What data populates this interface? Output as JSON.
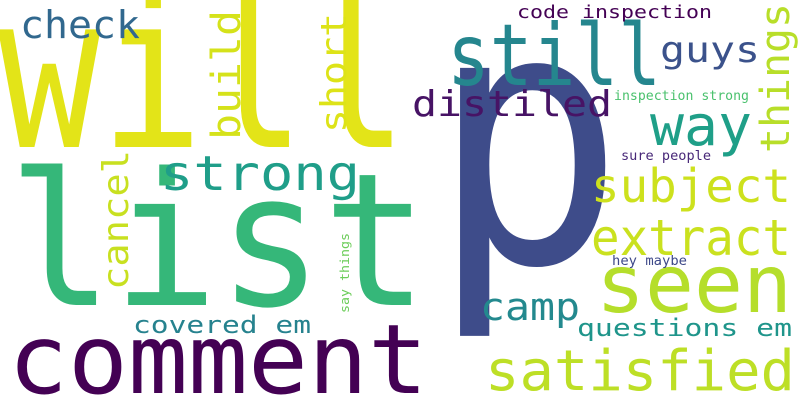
{
  "cloud": {
    "words": [
      {
        "text": "will",
        "color": "#e3e418",
        "rotated": false
      },
      {
        "text": "p",
        "color": "#3e4c8a",
        "rotated": false
      },
      {
        "text": "list",
        "color": "#35b779",
        "rotated": false
      },
      {
        "text": "comment",
        "color": "#440154",
        "rotated": false
      },
      {
        "text": "still",
        "color": "#25868e",
        "rotated": false
      },
      {
        "text": "seen",
        "color": "#b5de2b",
        "rotated": false
      },
      {
        "text": "satisfied",
        "color": "#bddf26",
        "rotated": false
      },
      {
        "text": "way",
        "color": "#1f9f88",
        "rotated": false
      },
      {
        "text": "extract",
        "color": "#cae11f",
        "rotated": false
      },
      {
        "text": "subject",
        "color": "#cde11d",
        "rotated": false
      },
      {
        "text": "strong",
        "color": "#1f9e89",
        "rotated": false
      },
      {
        "text": "distiled",
        "color": "#471365",
        "rotated": false
      },
      {
        "text": "check",
        "color": "#31688e",
        "rotated": false
      },
      {
        "text": "camp",
        "color": "#23898e",
        "rotated": false
      },
      {
        "text": "guys",
        "color": "#3b528b",
        "rotated": false
      },
      {
        "text": "questions em",
        "color": "#1f958b",
        "rotated": false
      },
      {
        "text": "covered em",
        "color": "#26828e",
        "rotated": false
      },
      {
        "text": "code inspection",
        "color": "#440154",
        "rotated": false
      },
      {
        "text": "inspection strong",
        "color": "#4ac16d",
        "rotated": false
      },
      {
        "text": "sure people",
        "color": "#482878",
        "rotated": false
      },
      {
        "text": "hey maybe",
        "color": "#3e4989",
        "rotated": false
      },
      {
        "text": "build",
        "color": "#d5e21a",
        "rotated": true
      },
      {
        "text": "short",
        "color": "#dde318",
        "rotated": true
      },
      {
        "text": "things",
        "color": "#b8de29",
        "rotated": true
      },
      {
        "text": "cancel",
        "color": "#c8e020",
        "rotated": true
      },
      {
        "text": "say things",
        "color": "#6ccd5a",
        "rotated": true
      }
    ]
  }
}
